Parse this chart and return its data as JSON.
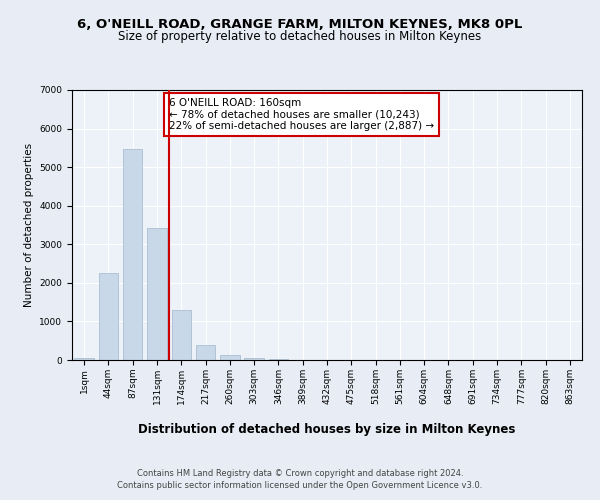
{
  "title1": "6, O'NEILL ROAD, GRANGE FARM, MILTON KEYNES, MK8 0PL",
  "title2": "Size of property relative to detached houses in Milton Keynes",
  "xlabel": "Distribution of detached houses by size in Milton Keynes",
  "ylabel": "Number of detached properties",
  "categories": [
    "1sqm",
    "44sqm",
    "87sqm",
    "131sqm",
    "174sqm",
    "217sqm",
    "260sqm",
    "303sqm",
    "346sqm",
    "389sqm",
    "432sqm",
    "475sqm",
    "518sqm",
    "561sqm",
    "604sqm",
    "648sqm",
    "691sqm",
    "734sqm",
    "777sqm",
    "820sqm",
    "863sqm"
  ],
  "values": [
    50,
    2260,
    5480,
    3410,
    1290,
    380,
    140,
    60,
    30,
    10,
    0,
    0,
    0,
    0,
    0,
    0,
    0,
    0,
    0,
    0,
    0
  ],
  "bar_color": "#c8d8e8",
  "bar_edgecolor": "#a0b8cc",
  "vline_x": 3.5,
  "vline_color": "#cc0000",
  "annotation_text": "6 O'NEILL ROAD: 160sqm\n← 78% of detached houses are smaller (10,243)\n22% of semi-detached houses are larger (2,887) →",
  "annotation_box_edgecolor": "#cc0000",
  "annotation_box_facecolor": "#ffffff",
  "ylim": [
    0,
    7000
  ],
  "yticks": [
    0,
    1000,
    2000,
    3000,
    4000,
    5000,
    6000,
    7000
  ],
  "bg_color": "#e8edf5",
  "plot_bg_color": "#edf1f8",
  "footer": "Contains HM Land Registry data © Crown copyright and database right 2024.\nContains public sector information licensed under the Open Government Licence v3.0.",
  "title1_fontsize": 9.5,
  "title2_fontsize": 8.5,
  "xlabel_fontsize": 8.5,
  "ylabel_fontsize": 7.5,
  "tick_fontsize": 6.5,
  "footer_fontsize": 6.0,
  "annot_fontsize": 7.5
}
